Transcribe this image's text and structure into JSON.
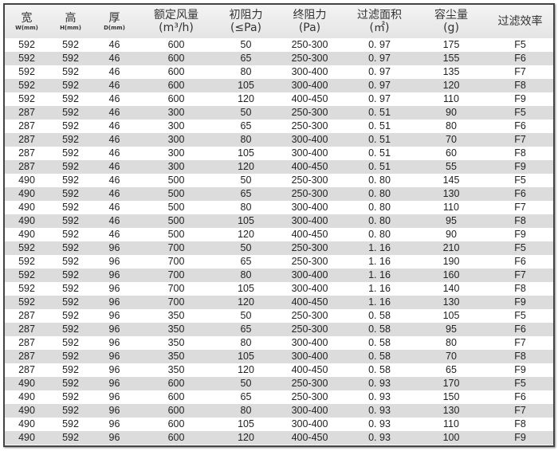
{
  "headers": [
    {
      "label": "宽",
      "sub": "W(mm)"
    },
    {
      "label": "高",
      "sub": "H(mm)"
    },
    {
      "label": "厚",
      "sub": "D(mm)"
    },
    {
      "label": "额定风量",
      "unit": "(m³/h)"
    },
    {
      "label": "初阻力",
      "unit": "(≤Pa)"
    },
    {
      "label": "终阻力",
      "unit": "(Pa)"
    },
    {
      "label": "过滤面积",
      "unit": "(㎡)"
    },
    {
      "label": "容尘量",
      "unit": "(g)"
    },
    {
      "label": "过滤效率"
    }
  ],
  "rows": [
    [
      "592",
      "592",
      "46",
      "600",
      "50",
      "250-300",
      "0. 97",
      "175",
      "F5"
    ],
    [
      "592",
      "592",
      "46",
      "600",
      "65",
      "250-300",
      "0. 97",
      "155",
      "F6"
    ],
    [
      "592",
      "592",
      "46",
      "600",
      "80",
      "300-400",
      "0. 97",
      "135",
      "F7"
    ],
    [
      "592",
      "592",
      "46",
      "600",
      "105",
      "300-400",
      "0. 97",
      "120",
      "F8"
    ],
    [
      "592",
      "592",
      "46",
      "600",
      "120",
      "400-450",
      "0. 97",
      "110",
      "F9"
    ],
    [
      "287",
      "592",
      "46",
      "300",
      "50",
      "250-300",
      "0. 51",
      "90",
      "F5"
    ],
    [
      "287",
      "592",
      "46",
      "300",
      "65",
      "250-300",
      "0. 51",
      "80",
      "F6"
    ],
    [
      "287",
      "592",
      "46",
      "300",
      "80",
      "300-400",
      "0. 51",
      "70",
      "F7"
    ],
    [
      "287",
      "592",
      "46",
      "300",
      "105",
      "300-400",
      "0. 51",
      "60",
      "F8"
    ],
    [
      "287",
      "592",
      "46",
      "300",
      "120",
      "400-450",
      "0. 51",
      "55",
      "F9"
    ],
    [
      "490",
      "592",
      "46",
      "500",
      "50",
      "250-300",
      "0. 80",
      "145",
      "F5"
    ],
    [
      "490",
      "592",
      "46",
      "500",
      "65",
      "250-300",
      "0. 80",
      "130",
      "F6"
    ],
    [
      "490",
      "592",
      "46",
      "500",
      "80",
      "300-400",
      "0. 80",
      "110",
      "F7"
    ],
    [
      "490",
      "592",
      "46",
      "500",
      "105",
      "300-400",
      "0. 80",
      "95",
      "F8"
    ],
    [
      "490",
      "592",
      "46",
      "500",
      "120",
      "400-450",
      "0. 80",
      "90",
      "F9"
    ],
    [
      "592",
      "592",
      "96",
      "700",
      "50",
      "250-300",
      "1. 16",
      "210",
      "F5"
    ],
    [
      "592",
      "592",
      "96",
      "700",
      "65",
      "250-300",
      "1. 16",
      "190",
      "F6"
    ],
    [
      "592",
      "592",
      "96",
      "700",
      "80",
      "300-400",
      "1. 16",
      "160",
      "F7"
    ],
    [
      "592",
      "592",
      "96",
      "700",
      "105",
      "300-400",
      "1. 16",
      "140",
      "F8"
    ],
    [
      "592",
      "592",
      "96",
      "700",
      "120",
      "400-450",
      "1. 16",
      "130",
      "F9"
    ],
    [
      "287",
      "592",
      "96",
      "350",
      "50",
      "250-300",
      "0. 58",
      "105",
      "F5"
    ],
    [
      "287",
      "592",
      "96",
      "350",
      "65",
      "250-300",
      "0. 58",
      "95",
      "F6"
    ],
    [
      "287",
      "592",
      "96",
      "350",
      "80",
      "300-400",
      "0. 58",
      "80",
      "F7"
    ],
    [
      "287",
      "592",
      "96",
      "350",
      "105",
      "300-400",
      "0. 58",
      "70",
      "F8"
    ],
    [
      "287",
      "592",
      "96",
      "350",
      "120",
      "400-450",
      "0. 58",
      "65",
      "F9"
    ],
    [
      "490",
      "592",
      "96",
      "600",
      "50",
      "250-300",
      "0. 93",
      "170",
      "F5"
    ],
    [
      "490",
      "592",
      "96",
      "600",
      "65",
      "250-300",
      "0. 93",
      "150",
      "F6"
    ],
    [
      "490",
      "592",
      "96",
      "600",
      "80",
      "300-400",
      "0. 93",
      "130",
      "F7"
    ],
    [
      "490",
      "592",
      "96",
      "600",
      "105",
      "300-400",
      "0. 93",
      "110",
      "F8"
    ],
    [
      "490",
      "592",
      "96",
      "600",
      "120",
      "400-450",
      "0. 93",
      "100",
      "F9"
    ]
  ]
}
